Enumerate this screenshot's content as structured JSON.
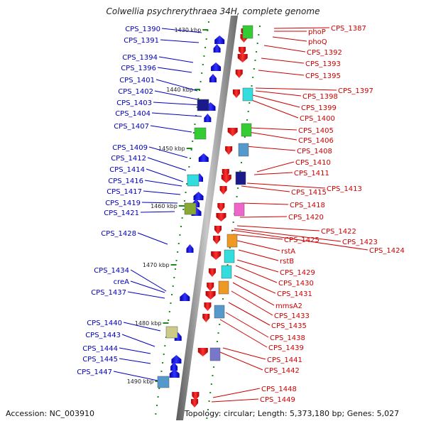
{
  "title": "Colwellia psychrerythraea 34H, complete genome",
  "accession": "Accession: NC_003910",
  "summary": "Topology: circular; Length: 5,373,180 bp; Genes: 5,027",
  "colors": {
    "forward_label": "#cc0000",
    "reverse_label": "#0000bb",
    "forward_gene": "#ee1c1c",
    "reverse_gene": "#1a1aee",
    "backbone": "#888888",
    "tick": "#1a8a1a"
  },
  "kbp_markers": [
    {
      "label": "1430 kbp"
    },
    {
      "label": "1440 kbp"
    },
    {
      "label": "1450 kbp"
    },
    {
      "label": "1460 kbp"
    },
    {
      "label": "1470 kbp"
    },
    {
      "label": "1480 kbp"
    },
    {
      "label": "1490 kbp"
    }
  ],
  "forward_genes": [
    "CPS_1387",
    "phoP",
    "phoQ",
    "CPS_1392",
    "CPS_1393",
    "CPS_1395",
    "CPS_1397",
    "CPS_1398",
    "CPS_1399",
    "CPS_1400",
    "CPS_1405",
    "CPS_1406",
    "CPS_1408",
    "CPS_1410",
    "CPS_1411",
    "CPS_1413",
    "CPS_1415",
    "CPS_1418",
    "CPS_1420",
    "CPS_1422",
    "CPS_1423",
    "CPS_1424",
    "CPS_1425",
    "rstA",
    "rstB",
    "CPS_1429",
    "CPS_1430",
    "CPS_1431",
    "mmsA2",
    "CPS_1433",
    "CPS_1435",
    "CPS_1438",
    "CPS_1439",
    "CPS_1441",
    "CPS_1442",
    "CPS_1448",
    "CPS_1449"
  ],
  "reverse_genes": [
    "CPS_1390",
    "CPS_1391",
    "CPS_1394",
    "CPS_1396",
    "CPS_1401",
    "CPS_1402",
    "CPS_1403",
    "CPS_1404",
    "CPS_1407",
    "CPS_1409",
    "CPS_1412",
    "CPS_1414",
    "CPS_1416",
    "CPS_1417",
    "CPS_1419",
    "CPS_1421",
    "CPS_1428",
    "CPS_1434",
    "creA",
    "CPS_1437",
    "CPS_1440",
    "CPS_1443",
    "CPS_1444",
    "CPS_1445",
    "CPS_1447"
  ]
}
